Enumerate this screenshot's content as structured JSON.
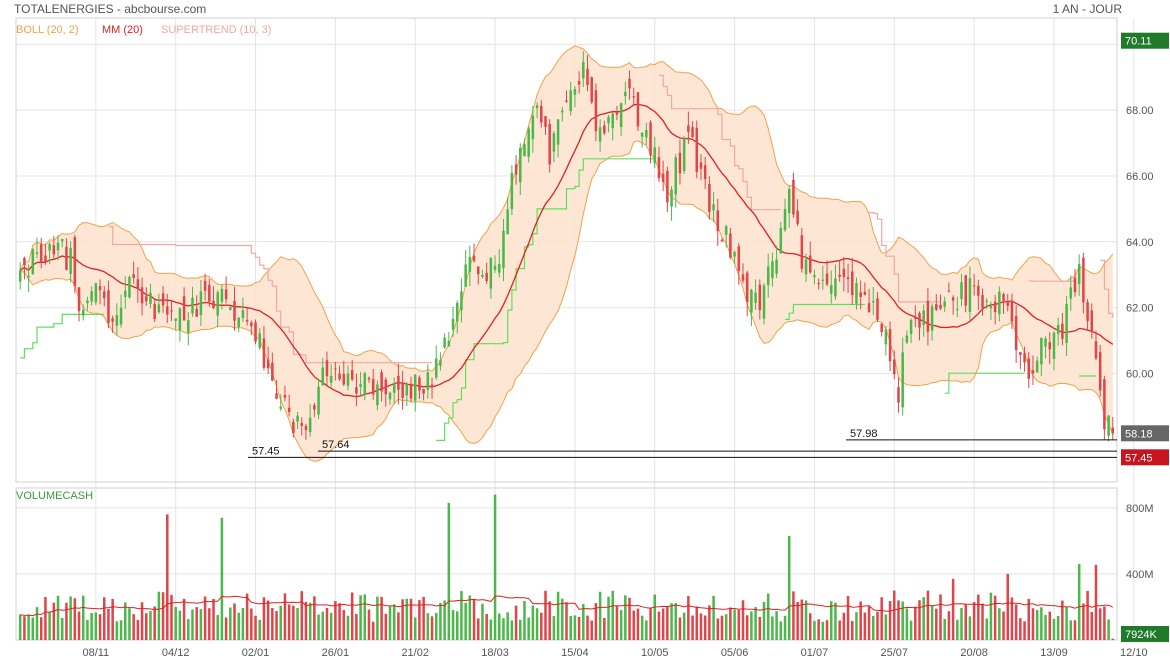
{
  "header": {
    "title": "TOTALENERGIES - abcbourse.com",
    "period": "1 AN - JOUR"
  },
  "legend": {
    "boll": "BOLL (20, 2)",
    "mm": "MM (20)",
    "supertrend": "SUPERTREND (10, 3)",
    "volume": "VOLUMECASH"
  },
  "colors": {
    "up": "#4cb84c",
    "down": "#e0454a",
    "boll_line": "#f0a24a",
    "boll_fill": "#fde3cc",
    "mm": "#e02020",
    "supertrend_up": "#5ee05e",
    "supertrend_down": "#f4a6a6",
    "grid": "#e4e4e4",
    "last_price_badge": "#666666",
    "low_badge": "#c8141e",
    "top_badge": "#1f7a2a"
  },
  "chart_data": [
    {
      "type": "candlestick",
      "title": "TOTALENERGIES",
      "ylim": [
        56.7,
        70.8
      ],
      "y_ticks": [
        "60.00",
        "62.00",
        "64.00",
        "66.00",
        "68.00"
      ],
      "x_ticks": [
        "08/11",
        "04/12",
        "02/01",
        "26/01",
        "21/02",
        "18/03",
        "15/04",
        "10/05",
        "05/06",
        "01/07",
        "25/07",
        "20/08",
        "13/09",
        "12/10"
      ],
      "top_value": "70.11",
      "last_value": "58.18",
      "low_value": "57.45",
      "annotations": [
        {
          "label": "57.45",
          "value": 57.45
        },
        {
          "label": "57.64",
          "value": 57.64
        },
        {
          "label": "57.98",
          "value": 57.98
        }
      ],
      "close_anchors": [
        [
          0,
          63.0
        ],
        [
          4,
          63.6
        ],
        [
          8,
          63.8
        ],
        [
          12,
          63.5
        ],
        [
          14,
          62.0
        ],
        [
          18,
          62.6
        ],
        [
          22,
          61.4
        ],
        [
          27,
          62.8
        ],
        [
          32,
          62.0
        ],
        [
          38,
          61.6
        ],
        [
          44,
          62.4
        ],
        [
          50,
          62.2
        ],
        [
          56,
          61.2
        ],
        [
          60,
          59.9
        ],
        [
          64,
          58.5
        ],
        [
          68,
          58.4
        ],
        [
          70,
          59.3
        ],
        [
          72,
          60.3
        ],
        [
          78,
          59.9
        ],
        [
          84,
          59.6
        ],
        [
          90,
          59.2
        ],
        [
          94,
          59.6
        ],
        [
          98,
          59.9
        ],
        [
          103,
          61.5
        ],
        [
          106,
          63.6
        ],
        [
          110,
          62.8
        ],
        [
          114,
          63.5
        ],
        [
          118,
          66.4
        ],
        [
          123,
          68.4
        ],
        [
          126,
          66.6
        ],
        [
          130,
          68.2
        ],
        [
          134,
          69.4
        ],
        [
          138,
          67.1
        ],
        [
          144,
          68.9
        ],
        [
          150,
          66.9
        ],
        [
          154,
          65.6
        ],
        [
          159,
          67.1
        ],
        [
          164,
          65.3
        ],
        [
          168,
          64.1
        ],
        [
          172,
          62.4
        ],
        [
          176,
          62.2
        ],
        [
          180,
          63.6
        ],
        [
          183,
          65.3
        ],
        [
          186,
          63.6
        ],
        [
          190,
          62.9
        ],
        [
          195,
          63.1
        ],
        [
          200,
          62.4
        ],
        [
          205,
          61.4
        ],
        [
          209,
          59.5
        ],
        [
          212,
          62.0
        ],
        [
          216,
          61.5
        ],
        [
          220,
          62.0
        ],
        [
          226,
          62.5
        ],
        [
          230,
          62.3
        ],
        [
          234,
          62.3
        ],
        [
          237,
          61.1
        ],
        [
          240,
          60.1
        ],
        [
          244,
          60.9
        ],
        [
          248,
          61.5
        ],
        [
          252,
          62.9
        ],
        [
          255,
          61.1
        ],
        [
          258,
          58.6
        ],
        [
          260,
          58.18
        ]
      ],
      "volume": {
        "title": "VOLUMECASH",
        "y_ticks": [
          "400M",
          "800M"
        ],
        "last_value": "7924K",
        "ylim": [
          0,
          920
        ],
        "spikes": [
          [
            35,
            760
          ],
          [
            48,
            740
          ],
          [
            102,
            830
          ],
          [
            113,
            880
          ],
          [
            183,
            630
          ],
          [
            186,
            245
          ],
          [
            193,
            235
          ],
          [
            222,
            370
          ],
          [
            235,
            400
          ],
          [
            252,
            460
          ],
          [
            256,
            455
          ]
        ]
      }
    }
  ]
}
